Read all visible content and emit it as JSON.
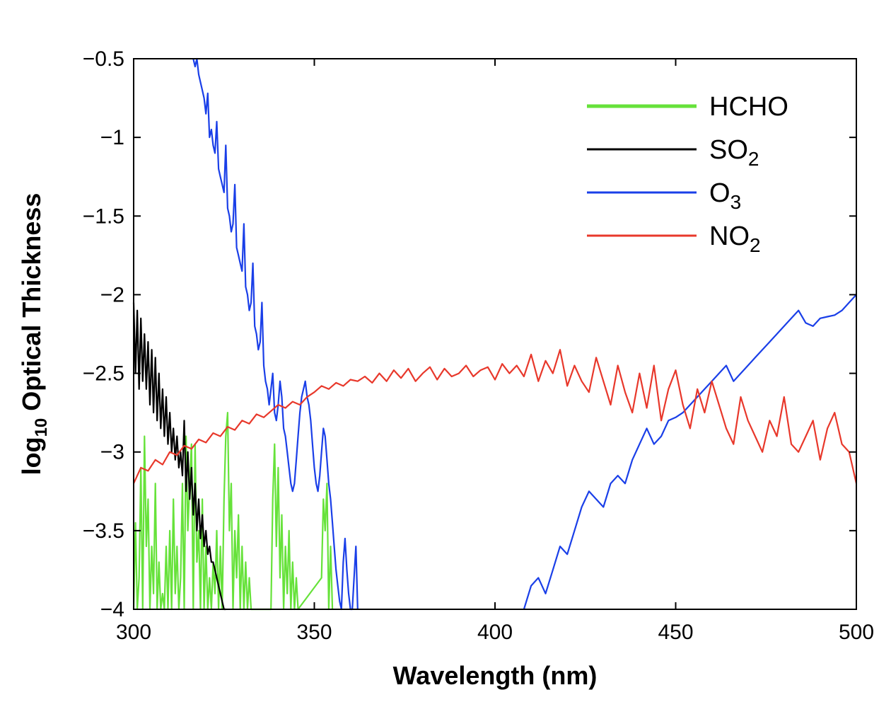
{
  "chart_data": {
    "type": "line",
    "title": "",
    "xlabel": "Wavelength (nm)",
    "ylabel_main": "log",
    "ylabel_sub": "10",
    "ylabel_rest": " Optical Thickness",
    "xlim": [
      300,
      500
    ],
    "ylim": [
      -4,
      -0.5
    ],
    "x_ticks": [
      300,
      350,
      400,
      450,
      500
    ],
    "x_tick_labels": [
      "300",
      "350",
      "400",
      "450",
      "500"
    ],
    "y_ticks": [
      -0.5,
      -1,
      -1.5,
      -2,
      -2.5,
      -3,
      -3.5,
      -4
    ],
    "y_tick_labels": [
      "−0.5",
      "−1",
      "−1.5",
      "−2",
      "−2.5",
      "−3",
      "−3.5",
      "−4"
    ],
    "grid": false,
    "legend_position": "top-right",
    "series": [
      {
        "name": "HCHO",
        "label_main": "HCHO",
        "label_sub": "",
        "color": "#66e23a",
        "x": [
          300,
          300.5,
          301,
          301.5,
          302,
          302.5,
          303,
          303.5,
          304,
          304.5,
          305,
          305.5,
          306,
          306.5,
          307,
          307.5,
          308,
          308.5,
          309,
          309.5,
          310,
          310.5,
          311,
          311.5,
          312,
          312.5,
          313,
          313.5,
          314,
          314.5,
          315,
          315.5,
          316,
          316.5,
          317,
          317.5,
          318,
          318.5,
          319,
          319.5,
          320,
          320.5,
          321,
          321.5,
          322,
          322.5,
          323,
          323.5,
          324,
          324.5,
          325,
          325.5,
          326,
          326.5,
          327,
          327.5,
          328,
          328.5,
          329,
          329.5,
          330,
          330.5,
          331,
          331.5,
          332,
          332.5,
          333,
          338,
          338.5,
          339,
          339.5,
          340,
          340.5,
          341,
          341.5,
          342,
          342.5,
          343,
          343.5,
          344,
          344.5,
          345,
          345.5,
          352,
          352.5,
          353,
          353.5,
          354,
          354.5,
          355
        ],
        "y": [
          -4,
          -3.45,
          -4,
          -3.8,
          -3.1,
          -4,
          -2.9,
          -3.6,
          -3.3,
          -4,
          -3.6,
          -3.9,
          -3.2,
          -4,
          -3.7,
          -4,
          -3.9,
          -4,
          -3.6,
          -4,
          -3.5,
          -4,
          -3.3,
          -3.9,
          -3.6,
          -4,
          -3.8,
          -3.2,
          -4,
          -2.9,
          -3.5,
          -3.2,
          -2.95,
          -4,
          -2.95,
          -3.7,
          -3.5,
          -4,
          -3.3,
          -4,
          -3.6,
          -4,
          -3.8,
          -4,
          -3.7,
          -3.9,
          -3.5,
          -4,
          -3.6,
          -4,
          -3.3,
          -2.9,
          -2.75,
          -3.5,
          -3.2,
          -4,
          -3.5,
          -3.8,
          -3.4,
          -4,
          -3.6,
          -4,
          -3.7,
          -4,
          -3.8,
          -4,
          -4,
          -4,
          -3.3,
          -2.95,
          -3.6,
          -3.1,
          -3.8,
          -3.4,
          -4,
          -3.6,
          -3.9,
          -3.5,
          -4,
          -3.7,
          -4,
          -3.8,
          -4,
          -3.8,
          -3.3,
          -3.5,
          -3.2,
          -4,
          -3.6,
          -4
        ]
      },
      {
        "name": "SO2",
        "label_main": "SO",
        "label_sub": "2",
        "color": "#000000",
        "x": [
          300,
          300.5,
          301,
          301.5,
          302,
          302.5,
          303,
          303.5,
          304,
          304.5,
          305,
          305.5,
          306,
          306.5,
          307,
          307.5,
          308,
          308.5,
          309,
          309.5,
          310,
          310.5,
          311,
          311.5,
          312,
          312.5,
          313,
          313.5,
          314,
          314.5,
          315,
          315.5,
          316,
          316.5,
          317,
          317.5,
          318,
          318.5,
          319,
          319.5,
          320,
          320.5,
          321,
          321.5,
          322,
          322.5,
          323,
          323.5,
          324,
          324.5,
          325,
          325.5
        ],
        "y": [
          -2.05,
          -2.5,
          -2.1,
          -2.6,
          -2.15,
          -2.55,
          -2.25,
          -2.6,
          -2.3,
          -2.7,
          -2.35,
          -2.75,
          -2.4,
          -2.8,
          -2.5,
          -2.85,
          -2.6,
          -2.9,
          -2.65,
          -2.95,
          -2.75,
          -3,
          -2.85,
          -3.05,
          -2.9,
          -3.1,
          -3,
          -3.15,
          -2.8,
          -3.25,
          -3,
          -3.3,
          -3.1,
          -3.4,
          -3.2,
          -3.5,
          -3.3,
          -3.55,
          -3.4,
          -3.6,
          -3.5,
          -3.65,
          -3.6,
          -3.7,
          -3.7,
          -3.75,
          -3.8,
          -3.85,
          -3.9,
          -3.95,
          -4,
          -4
        ]
      },
      {
        "name": "O3",
        "label_main": "O",
        "label_sub": "3",
        "color": "#1a3fe8",
        "x": [
          316.5,
          317,
          317.5,
          318,
          318.5,
          319,
          319.5,
          320,
          320.5,
          321,
          321.5,
          322,
          322.5,
          323,
          323.5,
          324,
          324.5,
          325,
          325.5,
          326,
          326.5,
          327,
          327.5,
          328,
          328.5,
          329,
          329.5,
          330,
          330.5,
          331,
          331.5,
          332,
          332.5,
          333,
          333.5,
          334,
          334.5,
          335,
          335.5,
          336,
          336.5,
          337,
          337.5,
          338,
          338.5,
          339,
          339.5,
          340,
          340.5,
          341,
          341.5,
          342,
          342.5,
          343,
          343.5,
          344,
          344.5,
          345,
          345.5,
          346,
          346.5,
          347,
          347.5,
          348,
          348.5,
          349,
          349.5,
          350,
          350.5,
          351,
          351.5,
          352,
          352.5,
          353,
          353.5,
          354,
          354.5,
          355,
          355.5,
          356,
          356.5,
          357,
          357.5,
          358,
          358.5,
          359,
          359.5,
          360,
          360.5,
          361,
          361.5,
          362
        ],
        "y": [
          -0.5,
          -0.55,
          -0.5,
          -0.6,
          -0.65,
          -0.7,
          -0.75,
          -0.85,
          -0.72,
          -1,
          -0.95,
          -1.05,
          -1.1,
          -0.9,
          -1.2,
          -1.25,
          -1.3,
          -1.35,
          -1.05,
          -1.45,
          -1.5,
          -1.6,
          -1.55,
          -1.3,
          -1.7,
          -1.75,
          -1.8,
          -1.85,
          -1.55,
          -1.95,
          -2,
          -2.1,
          -2.05,
          -1.8,
          -2.2,
          -2.25,
          -2.35,
          -2.3,
          -2.05,
          -2.45,
          -2.55,
          -2.6,
          -2.7,
          -2.6,
          -2.5,
          -2.75,
          -2.8,
          -2.7,
          -2.55,
          -2.65,
          -2.85,
          -2.9,
          -3,
          -3.1,
          -3.2,
          -3.25,
          -3.2,
          -3.05,
          -2.9,
          -2.75,
          -2.65,
          -2.6,
          -2.55,
          -2.65,
          -2.7,
          -2.8,
          -2.95,
          -3.1,
          -3.2,
          -3.25,
          -3.15,
          -3,
          -2.85,
          -2.9,
          -3.05,
          -3.2,
          -3.3,
          -3.45,
          -3.6,
          -3.75,
          -3.85,
          -3.95,
          -4,
          -3.7,
          -3.55,
          -3.75,
          -3.9,
          -4,
          -4,
          -3.8,
          -3.6,
          -4
        ],
        "x2": [
          408,
          410,
          412,
          414,
          416,
          418,
          420,
          422,
          424,
          426,
          428,
          430,
          432,
          434,
          436,
          438,
          440,
          442,
          444,
          446,
          448,
          450,
          452,
          454,
          456,
          458,
          460,
          462,
          464,
          466,
          468,
          470,
          472,
          474,
          476,
          478,
          480,
          482,
          484,
          486,
          488,
          490,
          492,
          494,
          496,
          498,
          500
        ],
        "y2": [
          -4,
          -3.85,
          -3.8,
          -3.9,
          -3.75,
          -3.6,
          -3.65,
          -3.5,
          -3.35,
          -3.25,
          -3.3,
          -3.35,
          -3.2,
          -3.15,
          -3.2,
          -3.05,
          -2.95,
          -2.85,
          -2.95,
          -2.9,
          -2.8,
          -2.78,
          -2.75,
          -2.7,
          -2.65,
          -2.6,
          -2.55,
          -2.5,
          -2.45,
          -2.55,
          -2.5,
          -2.45,
          -2.4,
          -2.35,
          -2.3,
          -2.25,
          -2.2,
          -2.15,
          -2.1,
          -2.18,
          -2.2,
          -2.15,
          -2.14,
          -2.13,
          -2.1,
          -2.05,
          -2
        ]
      },
      {
        "name": "NO2",
        "label_main": "NO",
        "label_sub": "2",
        "color": "#e8382b",
        "x": [
          300,
          302,
          304,
          306,
          308,
          310,
          312,
          314,
          316,
          318,
          320,
          322,
          324,
          326,
          328,
          330,
          332,
          334,
          336,
          338,
          340,
          342,
          344,
          346,
          348,
          350,
          352,
          354,
          356,
          358,
          360,
          362,
          364,
          366,
          368,
          370,
          372,
          374,
          376,
          378,
          380,
          382,
          384,
          386,
          388,
          390,
          392,
          394,
          396,
          398,
          400,
          402,
          404,
          406,
          408,
          410,
          412,
          414,
          416,
          418,
          420,
          422,
          424,
          426,
          428,
          430,
          432,
          434,
          436,
          438,
          440,
          442,
          444,
          446,
          448,
          450,
          452,
          454,
          456,
          458,
          460,
          462,
          464,
          466,
          468,
          470,
          472,
          474,
          476,
          478,
          480,
          482,
          484,
          486,
          488,
          490,
          492,
          494,
          496,
          498,
          500
        ],
        "y": [
          -3.2,
          -3.1,
          -3.12,
          -3.05,
          -3.08,
          -3.0,
          -3.02,
          -2.96,
          -2.98,
          -2.92,
          -2.94,
          -2.88,
          -2.9,
          -2.84,
          -2.86,
          -2.8,
          -2.82,
          -2.76,
          -2.78,
          -2.74,
          -2.7,
          -2.72,
          -2.68,
          -2.7,
          -2.65,
          -2.62,
          -2.58,
          -2.6,
          -2.56,
          -2.58,
          -2.54,
          -2.55,
          -2.52,
          -2.56,
          -2.5,
          -2.55,
          -2.48,
          -2.53,
          -2.47,
          -2.55,
          -2.5,
          -2.46,
          -2.54,
          -2.47,
          -2.52,
          -2.5,
          -2.45,
          -2.52,
          -2.48,
          -2.46,
          -2.54,
          -2.44,
          -2.5,
          -2.45,
          -2.52,
          -2.38,
          -2.55,
          -2.42,
          -2.5,
          -2.35,
          -2.58,
          -2.45,
          -2.55,
          -2.62,
          -2.4,
          -2.55,
          -2.7,
          -2.45,
          -2.62,
          -2.75,
          -2.5,
          -2.72,
          -2.45,
          -2.8,
          -2.6,
          -2.48,
          -2.7,
          -2.85,
          -2.6,
          -2.75,
          -2.55,
          -2.7,
          -2.85,
          -2.95,
          -2.65,
          -2.8,
          -2.9,
          -3.0,
          -2.8,
          -2.9,
          -2.65,
          -2.95,
          -3.0,
          -2.9,
          -2.8,
          -3.05,
          -2.85,
          -2.75,
          -2.95,
          -3.0,
          -3.2
        ]
      }
    ]
  }
}
